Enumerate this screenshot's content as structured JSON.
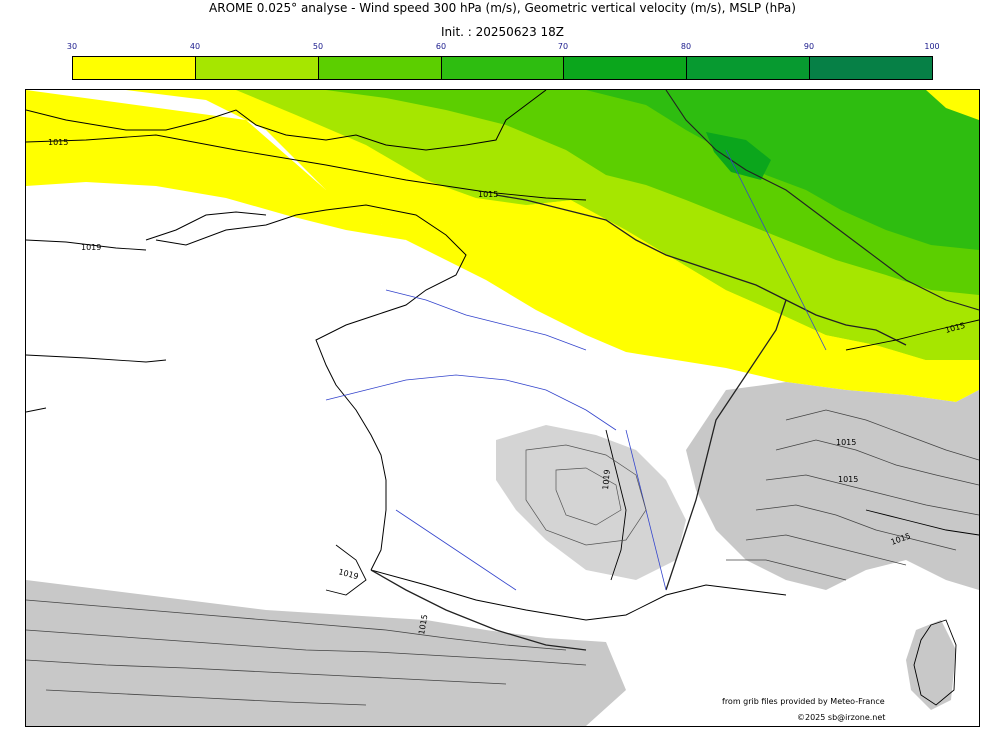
{
  "header": {
    "title": "AROME 0.025° analyse - Wind speed 300 hPa (m/s), Geometric vertical velocity (m/s), MSLP (hPa)",
    "init": "Init. : 20250623 18Z"
  },
  "colorbar": {
    "ticks": [
      "30",
      "40",
      "50",
      "60",
      "70",
      "80",
      "90",
      "100"
    ],
    "colors": [
      "#ffff00",
      "#a6e600",
      "#5ccf00",
      "#2ebd10",
      "#0ba61c",
      "#079a30",
      "#068046"
    ]
  },
  "map": {
    "region": "France and neighbouring countries",
    "isobar_labels": [
      "1015",
      "1015",
      "1019",
      "1019",
      "1019",
      "1015",
      "1015",
      "1015",
      "1015",
      "1015"
    ]
  },
  "credits": {
    "line1": "from grib files provided by Meteo-France",
    "line2": "©2025 sb@irzone.net"
  }
}
